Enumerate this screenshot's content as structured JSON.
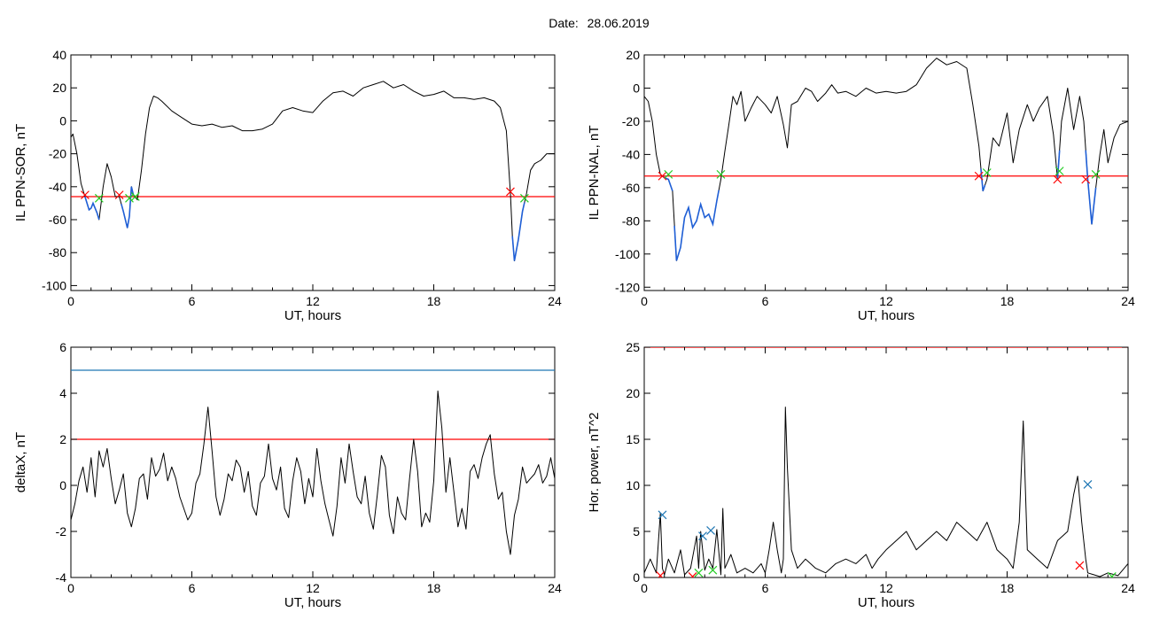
{
  "header": {
    "date_label": "Date:",
    "date_value": "28.06.2019"
  },
  "colors": {
    "data": "#000000",
    "threshold": "#ff0000",
    "upper_threshold": "#1f77b4",
    "segment": "#1f5fd6",
    "mark_start": "#ff0000",
    "mark_end": "#22cc22",
    "mark_peak": "#1f77b4"
  },
  "chart_data": [
    {
      "type": "line",
      "xlabel": "UT, hours",
      "ylabel": "IL PPN-SOR, nT",
      "xlim": [
        0,
        24
      ],
      "ylim": [
        -103,
        40
      ],
      "xticks": [
        "0",
        "6",
        "12",
        "18",
        "24"
      ],
      "yticks": [
        "40",
        "20",
        "0",
        "-20",
        "-40",
        "-60",
        "-80",
        "-100"
      ],
      "threshold": -46,
      "series": [
        {
          "x": [
            0,
            0.1,
            0.3,
            0.5,
            0.7,
            0.9,
            1.0,
            1.1,
            1.3,
            1.4,
            1.6,
            1.8,
            2.0,
            2.2,
            2.4,
            2.6,
            2.8,
            2.9,
            3.0,
            3.1,
            3.3,
            3.5,
            3.7,
            3.9,
            4.1,
            4.3,
            4.5,
            5,
            5.5,
            6,
            6.5,
            7,
            7.5,
            8,
            8.5,
            9,
            9.5,
            10,
            10.5,
            11,
            11.5,
            12,
            12.5,
            13,
            13.5,
            14,
            14.5,
            15,
            15.5,
            16,
            16.5,
            17,
            17.5,
            18,
            18.5,
            19,
            19.5,
            20,
            20.5,
            21,
            21.3,
            21.6,
            21.8,
            21.9,
            22.0,
            22.2,
            22.4,
            22.6,
            22.8,
            23.0,
            23.3,
            23.6,
            24
          ],
          "y": [
            -10,
            -8,
            -20,
            -38,
            -46,
            -54,
            -53,
            -50,
            -56,
            -60,
            -40,
            -26,
            -34,
            -46,
            -46,
            -55,
            -65,
            -58,
            -40,
            -45,
            -48,
            -30,
            -8,
            8,
            15,
            14,
            12,
            6,
            2,
            -2,
            -3,
            -2,
            -4,
            -3,
            -6,
            -6,
            -5,
            -2,
            6,
            8,
            6,
            5,
            12,
            17,
            18,
            15,
            20,
            22,
            24,
            20,
            22,
            18,
            15,
            16,
            18,
            14,
            14,
            13,
            14,
            12,
            8,
            -6,
            -44,
            -70,
            -85,
            -72,
            -55,
            -44,
            -30,
            -26,
            -24,
            -20,
            -20
          ]
        }
      ],
      "segments": [
        [
          0.7,
          1.4
        ],
        [
          2.5,
          3.1
        ],
        [
          21.9,
          22.5
        ]
      ],
      "marks_start": [
        [
          0.7,
          -45
        ],
        [
          2.4,
          -45
        ],
        [
          21.8,
          -43
        ]
      ],
      "marks_end": [
        [
          1.4,
          -47
        ],
        [
          2.9,
          -47
        ],
        [
          3.2,
          -46
        ],
        [
          22.5,
          -47
        ]
      ]
    },
    {
      "type": "line",
      "xlabel": "UT, hours",
      "ylabel": "IL PPN-NAL, nT",
      "xlim": [
        0,
        24
      ],
      "ylim": [
        -122,
        20
      ],
      "xticks": [
        "0",
        "6",
        "12",
        "18",
        "24"
      ],
      "yticks": [
        "20",
        "0",
        "-20",
        "-40",
        "-60",
        "-80",
        "-100",
        "-120"
      ],
      "threshold": -53,
      "series": [
        {
          "x": [
            0,
            0.2,
            0.4,
            0.6,
            0.8,
            1.0,
            1.2,
            1.4,
            1.6,
            1.8,
            2.0,
            2.2,
            2.4,
            2.6,
            2.8,
            3.0,
            3.2,
            3.4,
            3.6,
            3.8,
            4.0,
            4.2,
            4.4,
            4.6,
            4.8,
            5.0,
            5.3,
            5.6,
            6.0,
            6.3,
            6.6,
            6.9,
            7.1,
            7.3,
            7.6,
            8.0,
            8.3,
            8.6,
            9.0,
            9.3,
            9.6,
            10,
            10.5,
            11,
            11.5,
            12,
            12.5,
            13,
            13.5,
            14,
            14.5,
            15,
            15.5,
            16,
            16.3,
            16.6,
            16.8,
            17.0,
            17.3,
            17.6,
            18,
            18.3,
            18.6,
            19,
            19.3,
            19.6,
            20.0,
            20.3,
            20.5,
            20.7,
            21.0,
            21.3,
            21.6,
            21.8,
            22.0,
            22.2,
            22.4,
            22.6,
            22.8,
            23.0,
            23.3,
            23.6,
            24
          ],
          "y": [
            -5,
            -8,
            -20,
            -40,
            -52,
            -54,
            -55,
            -62,
            -104,
            -96,
            -78,
            -72,
            -84,
            -80,
            -70,
            -78,
            -76,
            -82,
            -68,
            -55,
            -38,
            -22,
            -5,
            -10,
            -2,
            -20,
            -12,
            -5,
            -10,
            -15,
            -5,
            -22,
            -36,
            -10,
            -8,
            0,
            -2,
            -8,
            -3,
            2,
            -3,
            -2,
            -5,
            0,
            -3,
            -2,
            -3,
            -2,
            2,
            12,
            18,
            14,
            16,
            12,
            -10,
            -35,
            -62,
            -55,
            -30,
            -35,
            -15,
            -45,
            -25,
            -10,
            -20,
            -12,
            -5,
            -28,
            -55,
            -20,
            0,
            -25,
            -5,
            -20,
            -55,
            -82,
            -60,
            -40,
            -25,
            -45,
            -30,
            -22,
            -20
          ]
        }
      ],
      "segments": [
        [
          0.9,
          1.4
        ],
        [
          1.5,
          3.7
        ],
        [
          16.7,
          16.9
        ],
        [
          20.5,
          20.6
        ],
        [
          21.9,
          22.4
        ]
      ],
      "marks_start": [
        [
          0.9,
          -53
        ],
        [
          16.6,
          -53
        ],
        [
          20.5,
          -55
        ],
        [
          21.9,
          -55
        ]
      ],
      "marks_end": [
        [
          1.2,
          -52
        ],
        [
          3.8,
          -52
        ],
        [
          17.0,
          -51
        ],
        [
          20.6,
          -50
        ],
        [
          22.4,
          -52
        ]
      ]
    },
    {
      "type": "line",
      "xlabel": "UT, hours",
      "ylabel": "deltaX, nT",
      "xlim": [
        0,
        24
      ],
      "ylim": [
        -4,
        6
      ],
      "xticks": [
        "0",
        "6",
        "12",
        "18",
        "24"
      ],
      "yticks": [
        "6",
        "4",
        "2",
        "0",
        "-2",
        "-4"
      ],
      "threshold": 2,
      "upper_threshold": 5,
      "series": [
        {
          "x": [
            0,
            0.2,
            0.4,
            0.6,
            0.8,
            1.0,
            1.2,
            1.4,
            1.6,
            1.8,
            2.0,
            2.2,
            2.4,
            2.6,
            2.8,
            3.0,
            3.2,
            3.4,
            3.6,
            3.8,
            4.0,
            4.2,
            4.4,
            4.6,
            4.8,
            5.0,
            5.2,
            5.4,
            5.6,
            5.8,
            6.0,
            6.2,
            6.4,
            6.6,
            6.8,
            7.0,
            7.2,
            7.4,
            7.6,
            7.8,
            8.0,
            8.2,
            8.4,
            8.6,
            8.8,
            9.0,
            9.2,
            9.4,
            9.6,
            9.8,
            10.0,
            10.2,
            10.4,
            10.6,
            10.8,
            11.0,
            11.2,
            11.4,
            11.6,
            11.8,
            12.0,
            12.2,
            12.4,
            12.6,
            12.8,
            13.0,
            13.2,
            13.4,
            13.6,
            13.8,
            14.0,
            14.2,
            14.4,
            14.6,
            14.8,
            15.0,
            15.2,
            15.4,
            15.6,
            15.8,
            16.0,
            16.2,
            16.4,
            16.6,
            16.8,
            17.0,
            17.2,
            17.4,
            17.6,
            17.8,
            18.0,
            18.2,
            18.4,
            18.6,
            18.8,
            19.0,
            19.2,
            19.4,
            19.6,
            19.8,
            20.0,
            20.2,
            20.4,
            20.6,
            20.8,
            21.0,
            21.2,
            21.4,
            21.6,
            21.8,
            22.0,
            22.2,
            22.4,
            22.6,
            22.8,
            23.0,
            23.2,
            23.4,
            23.6,
            23.8,
            24.0
          ],
          "y": [
            -1.5,
            -0.8,
            0.2,
            0.8,
            -0.3,
            1.2,
            -0.5,
            1.5,
            0.8,
            1.6,
            0.3,
            -0.8,
            -0.2,
            0.5,
            -1.2,
            -1.8,
            -1.0,
            0.3,
            0.5,
            -0.6,
            1.2,
            0.4,
            0.7,
            1.4,
            0.2,
            0.8,
            0.3,
            -0.5,
            -1.0,
            -1.5,
            -1.2,
            0.1,
            0.5,
            1.8,
            3.4,
            1.5,
            -0.5,
            -1.3,
            -0.6,
            0.5,
            0.2,
            1.1,
            0.8,
            -0.3,
            0.6,
            -0.9,
            -1.3,
            0.1,
            0.4,
            1.8,
            0.3,
            -0.2,
            0.8,
            -1.0,
            -1.4,
            0.2,
            1.2,
            0.6,
            -0.8,
            0.3,
            -0.5,
            1.6,
            0.2,
            -0.8,
            -1.5,
            -2.2,
            -0.9,
            1.2,
            0.1,
            1.8,
            0.6,
            -0.5,
            -0.8,
            0.4,
            -1.2,
            -1.9,
            -0.4,
            1.3,
            0.8,
            -1.3,
            -2.1,
            -0.5,
            -1.2,
            -1.5,
            0.3,
            2.0,
            0.6,
            -1.8,
            -1.2,
            -1.6,
            0.2,
            4.1,
            2.5,
            -0.3,
            1.2,
            -0.3,
            -1.8,
            -1.0,
            -1.9,
            0.6,
            0.9,
            0.3,
            1.2,
            1.8,
            2.2,
            0.5,
            -0.6,
            -0.3,
            -2.0,
            -3.0,
            -1.3,
            -0.6,
            0.8,
            0.1,
            0.3,
            0.5,
            0.9,
            0.1,
            0.4,
            1.2,
            0.3
          ]
        }
      ]
    },
    {
      "type": "line",
      "xlabel": "UT, hours",
      "ylabel": "Hor. power, nT^2",
      "xlim": [
        0,
        24
      ],
      "ylim": [
        0,
        25
      ],
      "xticks": [
        "0",
        "6",
        "12",
        "18",
        "24"
      ],
      "yticks": [
        "25",
        "20",
        "15",
        "10",
        "5",
        "0"
      ],
      "threshold": 25,
      "series": [
        {
          "x": [
            0,
            0.3,
            0.6,
            0.8,
            0.9,
            1.0,
            1.2,
            1.5,
            1.8,
            2.0,
            2.3,
            2.6,
            2.7,
            2.8,
            3.0,
            3.2,
            3.4,
            3.6,
            3.8,
            3.9,
            4.0,
            4.3,
            4.6,
            5.0,
            5.4,
            5.8,
            6.0,
            6.2,
            6.4,
            6.6,
            6.8,
            6.9,
            7.0,
            7.1,
            7.3,
            7.6,
            8,
            8.5,
            9,
            9.5,
            10,
            10.5,
            11,
            11.3,
            11.6,
            12,
            12.5,
            13,
            13.5,
            14,
            14.5,
            15,
            15.5,
            16,
            16.5,
            17,
            17.5,
            18,
            18.3,
            18.6,
            18.8,
            19,
            19.5,
            20,
            20.5,
            21,
            21.3,
            21.5,
            21.7,
            21.9,
            22.0,
            22.3,
            22.6,
            23,
            23.5,
            24
          ],
          "y": [
            0.5,
            2,
            0.5,
            7,
            1,
            0.3,
            2,
            0.5,
            3,
            0.3,
            1,
            4.5,
            1,
            5,
            0.8,
            2,
            1,
            5.2,
            0.3,
            7.5,
            1,
            2.5,
            0.5,
            1,
            0.5,
            1.5,
            0.5,
            3,
            6,
            3,
            0.5,
            2,
            18.5,
            12,
            3,
            1,
            2,
            1,
            0.5,
            1.5,
            2,
            1.5,
            2.5,
            1,
            2,
            3,
            4,
            5,
            3,
            4,
            5,
            4,
            6,
            5,
            4,
            6,
            3,
            2,
            1,
            6,
            17,
            3,
            2,
            1,
            4,
            5,
            9,
            11,
            6,
            2,
            0.5,
            0.3,
            0.1,
            0.5,
            0.2,
            1.5
          ]
        }
      ],
      "marks_start": [
        [
          0.8,
          0.2
        ],
        [
          2.4,
          0.1
        ],
        [
          21.6,
          1.3
        ]
      ],
      "marks_end": [
        [
          2.7,
          0.5
        ],
        [
          3.4,
          0.8
        ],
        [
          23.2,
          0.1
        ]
      ],
      "marks_peak": [
        [
          0.9,
          6.8
        ],
        [
          2.9,
          4.5
        ],
        [
          3.3,
          5.1
        ],
        [
          22.0,
          10.1
        ]
      ]
    }
  ]
}
